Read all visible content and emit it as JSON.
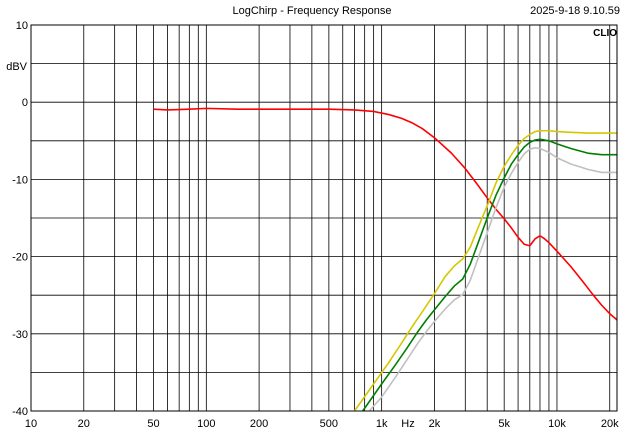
{
  "header": {
    "title": "LogChirp - Frequency Response",
    "timestamp": "2025-9-18 9.10.59",
    "brand": "CLIO"
  },
  "chart_data": {
    "type": "line",
    "title": "LogChirp - Frequency Response",
    "xlabel": "Hz",
    "ylabel": "dBV",
    "xscale": "log",
    "xlim": [
      10,
      22000
    ],
    "ylim": [
      -40,
      10
    ],
    "grid": true,
    "x_ticks": [
      {
        "value": 10,
        "label": "10"
      },
      {
        "value": 20,
        "label": "20"
      },
      {
        "value": 50,
        "label": "50"
      },
      {
        "value": 100,
        "label": "100"
      },
      {
        "value": 200,
        "label": "200"
      },
      {
        "value": 500,
        "label": "500"
      },
      {
        "value": 1000,
        "label": "1k"
      },
      {
        "value": 2000,
        "label": "2k"
      },
      {
        "value": 5000,
        "label": "5k"
      },
      {
        "value": 10000,
        "label": "10k"
      },
      {
        "value": 20000,
        "label": "20k"
      }
    ],
    "y_ticks": [
      {
        "value": 10,
        "label": "10"
      },
      {
        "value": 0,
        "label": "0"
      },
      {
        "value": -10,
        "label": "-10"
      },
      {
        "value": -20,
        "label": "-20"
      },
      {
        "value": -30,
        "label": "-30"
      },
      {
        "value": -40,
        "label": "-40"
      }
    ],
    "series": [
      {
        "color": "#ff0000",
        "points": [
          [
            50,
            -0.9
          ],
          [
            60,
            -1.0
          ],
          [
            80,
            -0.9
          ],
          [
            100,
            -0.8
          ],
          [
            150,
            -0.9
          ],
          [
            200,
            -0.9
          ],
          [
            300,
            -0.9
          ],
          [
            400,
            -0.9
          ],
          [
            500,
            -0.9
          ],
          [
            700,
            -1.0
          ],
          [
            900,
            -1.2
          ],
          [
            1100,
            -1.6
          ],
          [
            1300,
            -2.1
          ],
          [
            1500,
            -2.7
          ],
          [
            1700,
            -3.4
          ],
          [
            2000,
            -4.6
          ],
          [
            2500,
            -6.6
          ],
          [
            3000,
            -8.6
          ],
          [
            3500,
            -10.6
          ],
          [
            4000,
            -12.4
          ],
          [
            4500,
            -13.9
          ],
          [
            5000,
            -15.1
          ],
          [
            5500,
            -16.3
          ],
          [
            6000,
            -17.5
          ],
          [
            6500,
            -18.4
          ],
          [
            7000,
            -18.6
          ],
          [
            7500,
            -17.7
          ],
          [
            8000,
            -17.3
          ],
          [
            8500,
            -17.7
          ],
          [
            9000,
            -18.2
          ],
          [
            10000,
            -19.3
          ],
          [
            12000,
            -21.3
          ],
          [
            14000,
            -23.2
          ],
          [
            16000,
            -24.9
          ],
          [
            18000,
            -26.3
          ],
          [
            20000,
            -27.4
          ],
          [
            22000,
            -28.2
          ]
        ]
      },
      {
        "color": "#d4c800",
        "points": [
          [
            700,
            -40
          ],
          [
            900,
            -36.5
          ],
          [
            1100,
            -33.7
          ],
          [
            1300,
            -31.2
          ],
          [
            1500,
            -29.0
          ],
          [
            1700,
            -27.2
          ],
          [
            2000,
            -24.8
          ],
          [
            2300,
            -22.6
          ],
          [
            2600,
            -21.2
          ],
          [
            2900,
            -20.3
          ],
          [
            3200,
            -18.8
          ],
          [
            3500,
            -16.6
          ],
          [
            4000,
            -13.4
          ],
          [
            4500,
            -10.4
          ],
          [
            5000,
            -8.3
          ],
          [
            5500,
            -6.8
          ],
          [
            6000,
            -5.6
          ],
          [
            6500,
            -4.7
          ],
          [
            7000,
            -4.2
          ],
          [
            7500,
            -3.8
          ],
          [
            8000,
            -3.7
          ],
          [
            9000,
            -3.7
          ],
          [
            10000,
            -3.8
          ],
          [
            12000,
            -3.9
          ],
          [
            15000,
            -4.0
          ],
          [
            18000,
            -4.0
          ],
          [
            22000,
            -4.0
          ]
        ]
      },
      {
        "color": "#008000",
        "points": [
          [
            780,
            -40
          ],
          [
            1000,
            -36.5
          ],
          [
            1200,
            -34.0
          ],
          [
            1400,
            -31.8
          ],
          [
            1600,
            -29.8
          ],
          [
            1800,
            -28.2
          ],
          [
            2000,
            -26.9
          ],
          [
            2300,
            -25.2
          ],
          [
            2600,
            -23.8
          ],
          [
            2900,
            -22.9
          ],
          [
            3200,
            -21.0
          ],
          [
            3500,
            -18.6
          ],
          [
            4000,
            -15.0
          ],
          [
            4500,
            -12.0
          ],
          [
            5000,
            -9.8
          ],
          [
            5500,
            -8.0
          ],
          [
            6000,
            -6.8
          ],
          [
            6500,
            -5.8
          ],
          [
            7000,
            -5.2
          ],
          [
            7500,
            -4.9
          ],
          [
            8000,
            -4.8
          ],
          [
            9000,
            -5.0
          ],
          [
            10000,
            -5.4
          ],
          [
            12000,
            -6.0
          ],
          [
            15000,
            -6.6
          ],
          [
            18000,
            -6.8
          ],
          [
            22000,
            -6.8
          ]
        ]
      },
      {
        "color": "#c0c0c0",
        "points": [
          [
            850,
            -40
          ],
          [
            1000,
            -38.2
          ],
          [
            1200,
            -35.6
          ],
          [
            1400,
            -33.3
          ],
          [
            1600,
            -31.3
          ],
          [
            1800,
            -29.7
          ],
          [
            2000,
            -28.4
          ],
          [
            2300,
            -26.8
          ],
          [
            2600,
            -25.6
          ],
          [
            2900,
            -24.9
          ],
          [
            3200,
            -23.1
          ],
          [
            3500,
            -20.6
          ],
          [
            4000,
            -16.9
          ],
          [
            4500,
            -13.6
          ],
          [
            5000,
            -11.0
          ],
          [
            5500,
            -9.2
          ],
          [
            6000,
            -7.8
          ],
          [
            6500,
            -6.7
          ],
          [
            7000,
            -6.1
          ],
          [
            7500,
            -5.9
          ],
          [
            8000,
            -6.0
          ],
          [
            9000,
            -6.5
          ],
          [
            10000,
            -7.2
          ],
          [
            12000,
            -8.0
          ],
          [
            15000,
            -8.7
          ],
          [
            18000,
            -9.1
          ],
          [
            22000,
            -9.1
          ]
        ]
      }
    ]
  }
}
